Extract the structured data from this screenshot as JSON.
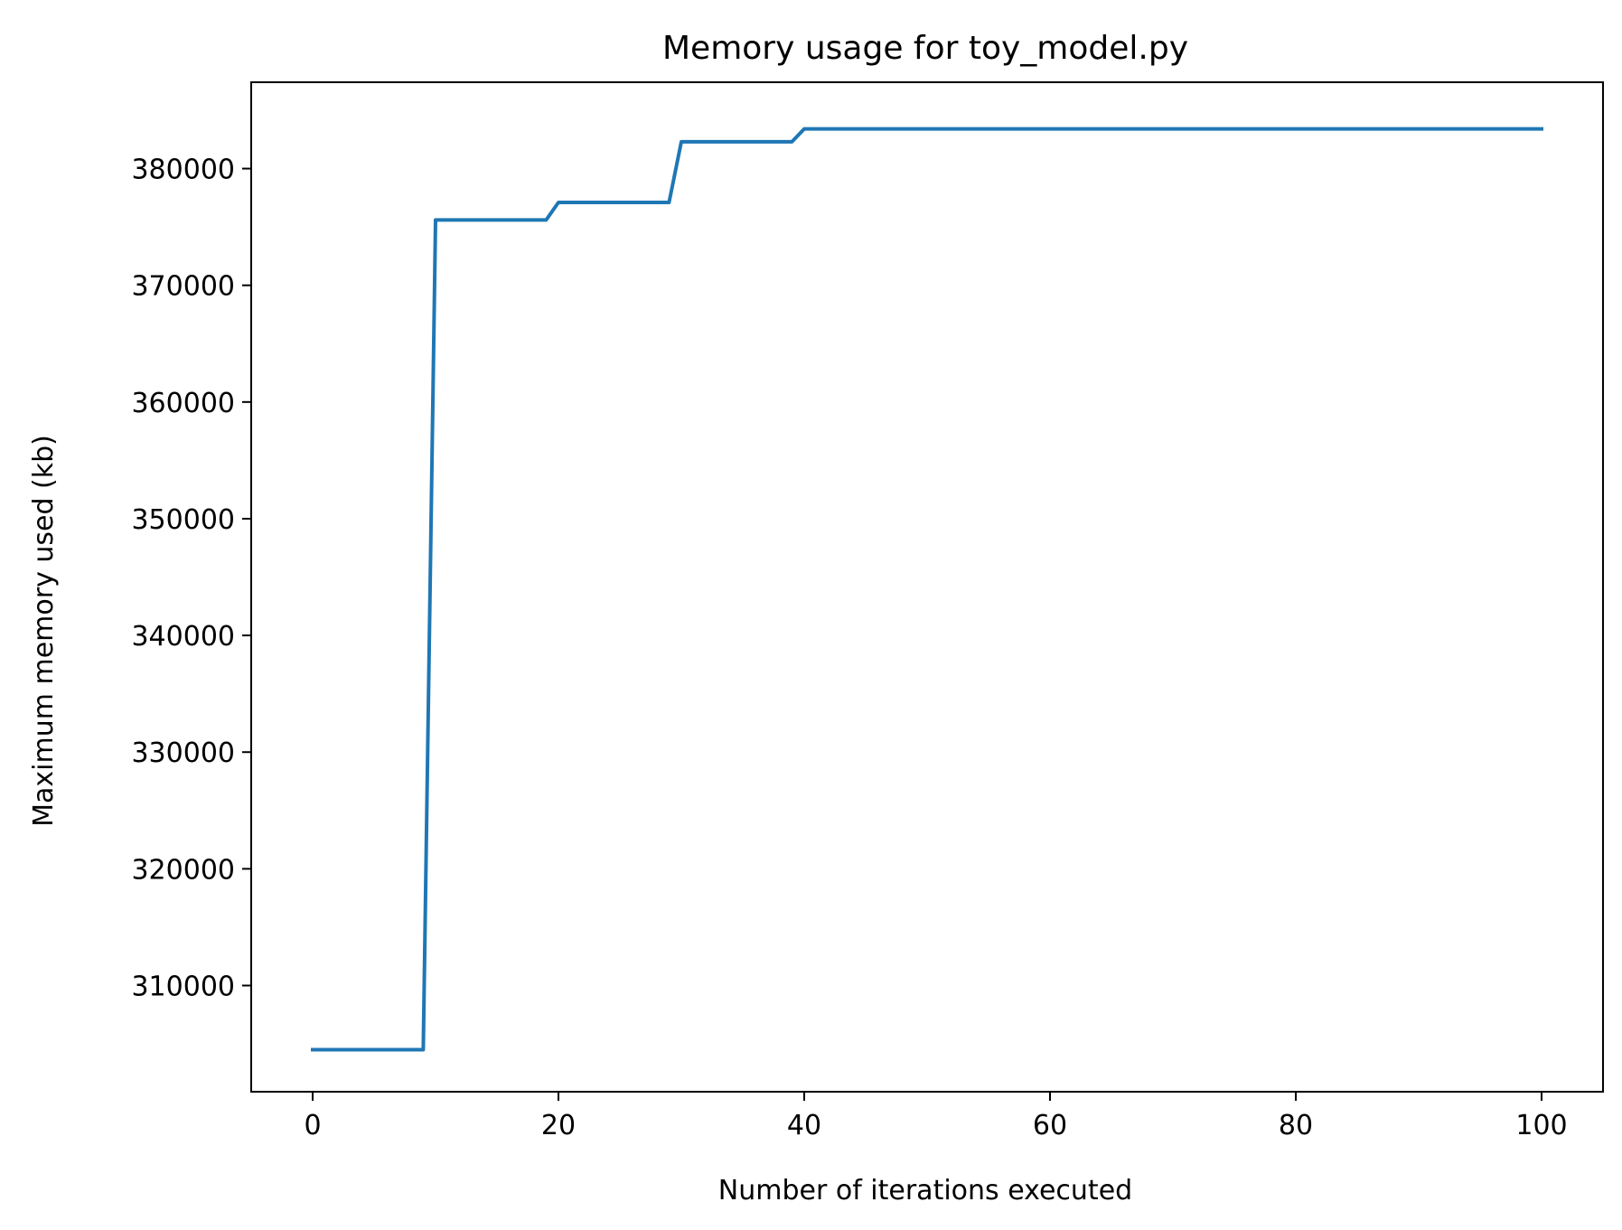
{
  "chart_data": {
    "type": "line",
    "title": "Memory usage for toy_model.py",
    "xlabel": "Number of iterations executed",
    "ylabel": "Maximum memory used (kb)",
    "xlim": [
      -5,
      105
    ],
    "ylim": [
      300900,
      387400
    ],
    "xticks": [
      0,
      20,
      40,
      60,
      80,
      100
    ],
    "yticks": [
      310000,
      320000,
      330000,
      340000,
      350000,
      360000,
      370000,
      380000
    ],
    "grid": false,
    "legend": "none",
    "series": [
      {
        "color": "#1f77b4",
        "points": [
          [
            0,
            304500
          ],
          [
            9,
            304500
          ],
          [
            10,
            375600
          ],
          [
            19,
            375600
          ],
          [
            20,
            377100
          ],
          [
            29,
            377100
          ],
          [
            30,
            382300
          ],
          [
            39,
            382300
          ],
          [
            40,
            383400
          ],
          [
            100,
            383400
          ]
        ]
      }
    ]
  }
}
